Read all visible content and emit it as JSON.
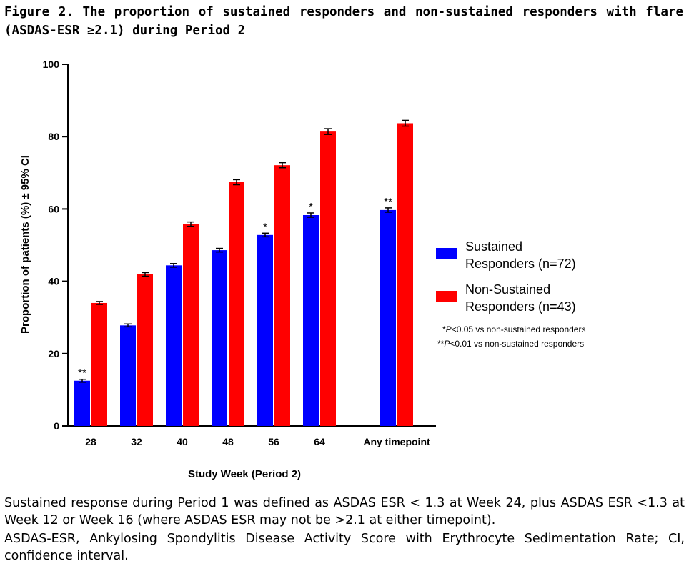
{
  "figure": {
    "title": "Figure 2. The proportion of sustained responders and non-sustained responders with flare (ASDAS-ESR ≥2.1) during Period 2"
  },
  "chart_data": {
    "type": "bar",
    "title": "",
    "xlabel": "Study Week (Period 2)",
    "ylabel": "Proportion of patients  (%) ± 95% CI",
    "ylim": [
      0,
      100
    ],
    "yticks": [
      "0",
      "20",
      "40",
      "60",
      "80",
      "100"
    ],
    "grid": false,
    "legend_position": "right",
    "categories": [
      "28",
      "32",
      "40",
      "48",
      "56",
      "64",
      "Any timepoint"
    ],
    "series": [
      {
        "name": "Sustained Responders (n=72)",
        "legend_lines": [
          "Sustained",
          "Responders (n=72)"
        ],
        "color": "#0000ff",
        "values": [
          12.5,
          27.8,
          44.4,
          48.6,
          52.8,
          58.3,
          59.7
        ],
        "ci": [
          0.4,
          0.4,
          0.5,
          0.5,
          0.5,
          0.6,
          0.6
        ],
        "significance": [
          "**",
          "",
          "",
          "",
          "*",
          "*",
          "**"
        ]
      },
      {
        "name": "Non-Sustained Responders (n=43)",
        "legend_lines": [
          "Non-Sustained",
          "Responders (n=43)"
        ],
        "color": "#ff0000",
        "values": [
          34.0,
          41.9,
          55.8,
          67.4,
          72.1,
          81.4,
          83.7
        ],
        "ci": [
          0.4,
          0.5,
          0.6,
          0.7,
          0.7,
          0.8,
          0.8
        ]
      }
    ],
    "annotations": [
      {
        "stars": "*",
        "text": "<0.05 vs non-sustained responders"
      },
      {
        "stars": "**",
        "text": "<0.01 vs non-sustained responders"
      }
    ],
    "p_symbol": "P"
  },
  "caption": {
    "paragraph1": "Sustained response during Period 1 was defined as ASDAS ESR < 1.3 at Week 24, plus ASDAS ESR <1.3 at Week 12 or Week 16 (where ASDAS ESR may not be >2.1 at either timepoint).",
    "paragraph2": "ASDAS-ESR, Ankylosing Spondylitis Disease Activity Score with Erythrocyte Sedimentation Rate; CI, confidence interval."
  }
}
